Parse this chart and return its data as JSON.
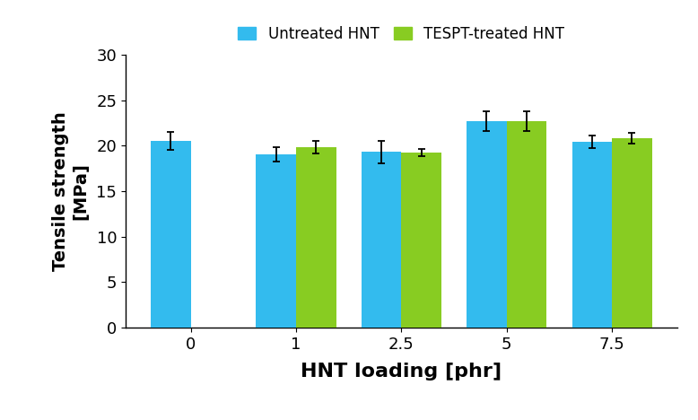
{
  "categories": [
    "0",
    "1",
    "2.5",
    "5",
    "7.5"
  ],
  "untreated_values": [
    20.5,
    19.0,
    19.3,
    22.7,
    20.4
  ],
  "tespt_values": [
    null,
    19.8,
    19.2,
    22.7,
    20.8
  ],
  "untreated_errors": [
    1.0,
    0.8,
    1.2,
    1.1,
    0.7
  ],
  "tespt_errors": [
    null,
    0.7,
    0.4,
    1.1,
    0.6
  ],
  "untreated_color": "#33BBEE",
  "tespt_color": "#88CC22",
  "ylabel_line1": "Tensile strength",
  "ylabel_line2": "[MPa]",
  "xlabel": "HNT loading [phr]",
  "legend_untreated": "Untreated HNT",
  "legend_tespt": "TESPT-treated HNT",
  "ylim": [
    0,
    30
  ],
  "yticks": [
    0,
    5,
    10,
    15,
    20,
    25,
    30
  ],
  "bar_width": 0.38,
  "figsize": [
    7.78,
    4.68
  ],
  "dpi": 100,
  "background_color": "#ffffff",
  "error_capsize": 3,
  "error_linewidth": 1.3,
  "ylabel_fontsize": 14,
  "xlabel_fontsize": 16,
  "tick_fontsize": 13,
  "legend_fontsize": 12
}
